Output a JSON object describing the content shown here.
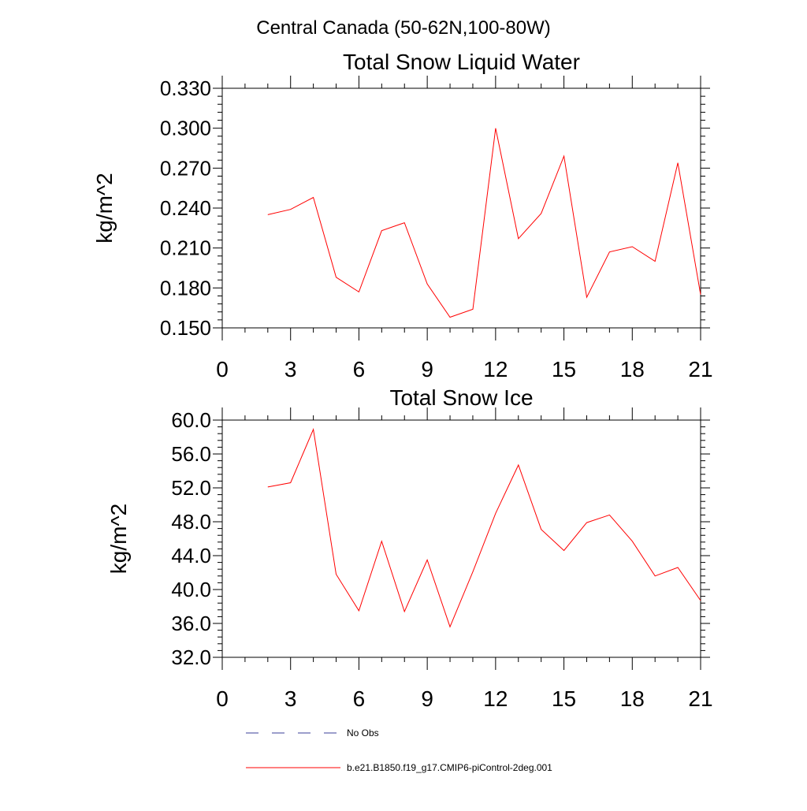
{
  "figure": {
    "title": "Central Canada (50-62N,100-80W)"
  },
  "legend": {
    "placement": "bottom-left",
    "entries": [
      {
        "label": "No Obs",
        "color": "#3a3f99",
        "style": "dashed"
      },
      {
        "label": "b.e21.B1850.f19_g17.CMIP6-piControl-2deg.001",
        "color": "#ff0000",
        "style": "solid"
      }
    ]
  },
  "chart_data": [
    {
      "type": "line",
      "title": "Total Snow Liquid Water",
      "xlabel": "",
      "ylabel": "kg/m^2",
      "xlim": [
        0,
        21
      ],
      "ylim": [
        0.15,
        0.33
      ],
      "xticks": [
        0,
        3,
        6,
        9,
        12,
        15,
        18,
        21
      ],
      "xtick_labels": [
        "0",
        "3",
        "6",
        "9",
        "12",
        "15",
        "18",
        "21"
      ],
      "yticks": [
        0.15,
        0.18,
        0.21,
        0.24,
        0.27,
        0.3,
        0.33
      ],
      "ytick_labels": [
        "0.150",
        "0.180",
        "0.210",
        "0.240",
        "0.270",
        "0.300",
        "0.330"
      ],
      "grid": false,
      "series": [
        {
          "name": "b.e21.B1850.f19_g17.CMIP6-piControl-2deg.001",
          "color": "#ff0000",
          "x": [
            2,
            3,
            4,
            5,
            6,
            7,
            8,
            9,
            10,
            11,
            12,
            13,
            14,
            15,
            16,
            17,
            18,
            19,
            20,
            21
          ],
          "y": [
            0.235,
            0.239,
            0.248,
            0.188,
            0.177,
            0.223,
            0.229,
            0.183,
            0.158,
            0.164,
            0.3,
            0.217,
            0.236,
            0.279,
            0.173,
            0.207,
            0.211,
            0.2,
            0.274,
            0.175
          ]
        }
      ]
    },
    {
      "type": "line",
      "title": "Total Snow Ice",
      "xlabel": "",
      "ylabel": "kg/m^2",
      "xlim": [
        0,
        21
      ],
      "ylim": [
        32,
        60
      ],
      "xticks": [
        0,
        3,
        6,
        9,
        12,
        15,
        18,
        21
      ],
      "xtick_labels": [
        "0",
        "3",
        "6",
        "9",
        "12",
        "15",
        "18",
        "21"
      ],
      "yticks": [
        32,
        36,
        40,
        44,
        48,
        52,
        56,
        60
      ],
      "ytick_labels": [
        "32.0",
        "36.0",
        "40.0",
        "44.0",
        "48.0",
        "52.0",
        "56.0",
        "60.0"
      ],
      "grid": false,
      "series": [
        {
          "name": "b.e21.B1850.f19_g17.CMIP6-piControl-2deg.001",
          "color": "#ff0000",
          "x": [
            2,
            3,
            4,
            5,
            6,
            7,
            8,
            9,
            10,
            11,
            12,
            13,
            14,
            15,
            16,
            17,
            18,
            19,
            20,
            21
          ],
          "y": [
            52.1,
            52.6,
            58.9,
            41.8,
            37.5,
            45.7,
            37.4,
            43.5,
            35.6,
            42.1,
            49.0,
            54.7,
            47.1,
            44.6,
            47.9,
            48.8,
            45.7,
            41.6,
            42.6,
            38.7
          ]
        }
      ]
    }
  ]
}
